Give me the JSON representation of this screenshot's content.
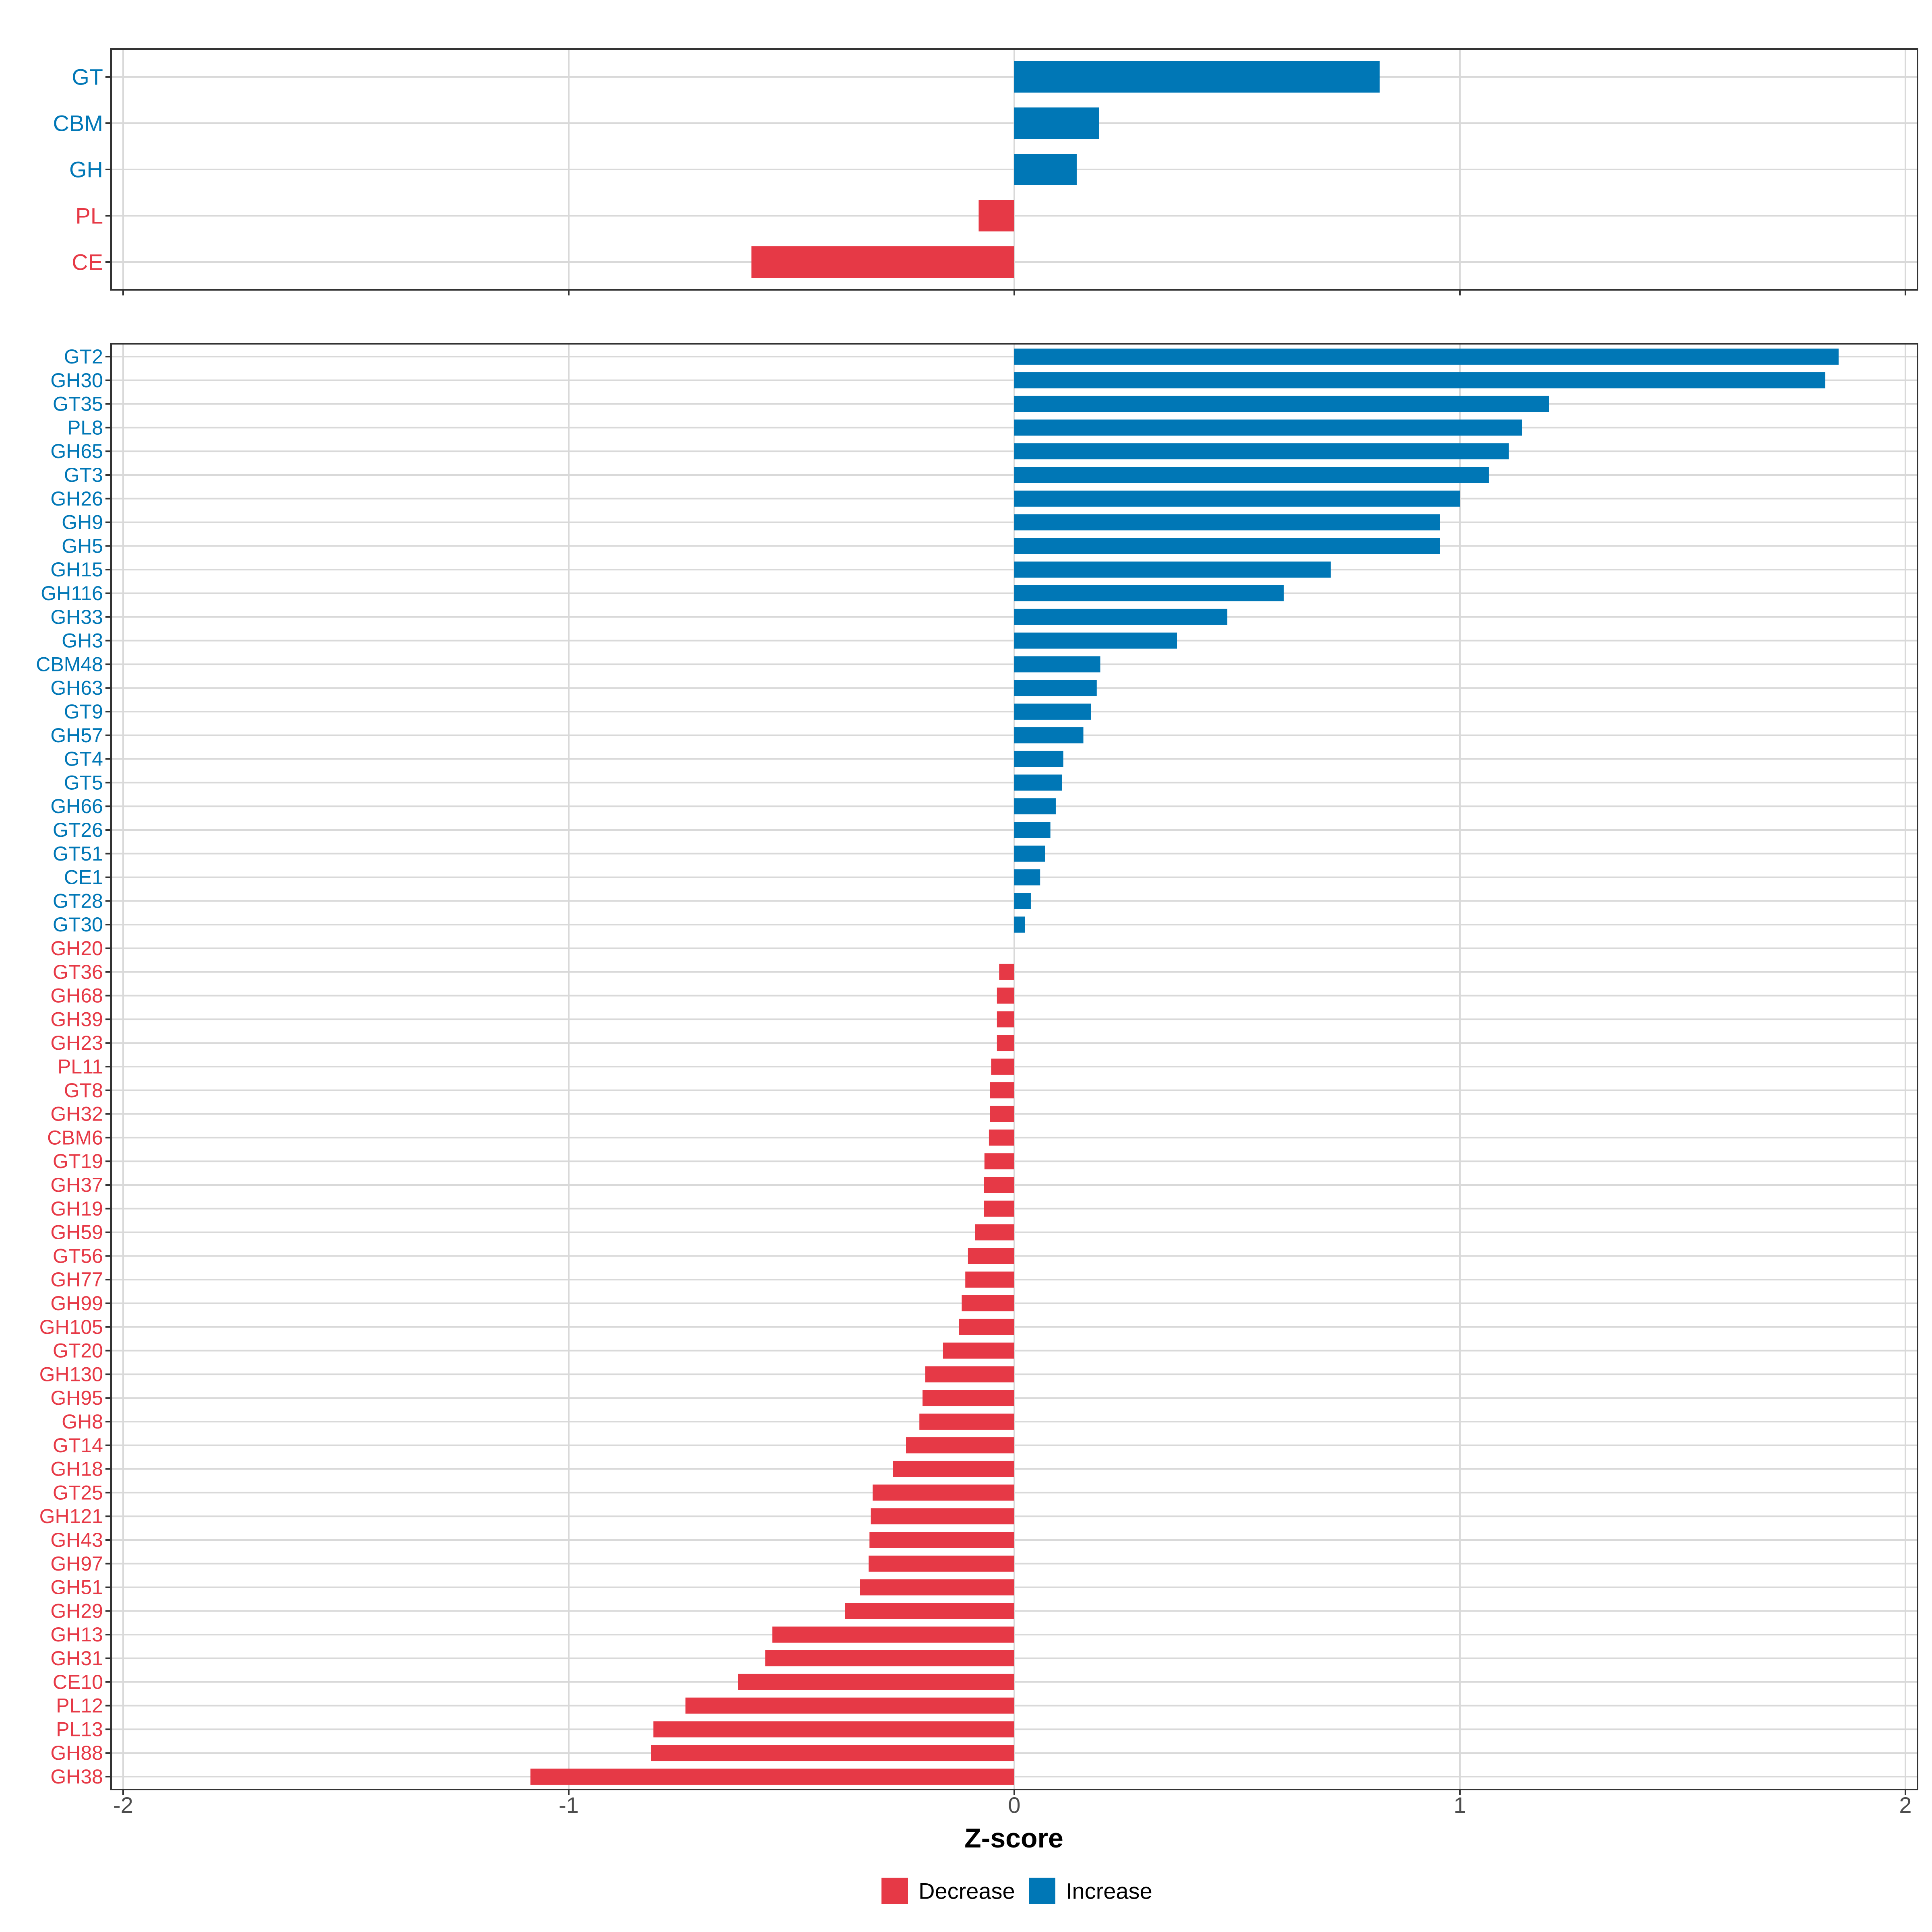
{
  "chart_data": [
    {
      "id": "top",
      "type": "bar",
      "orientation": "horizontal",
      "title": "",
      "xlabel": "",
      "ylabel": "",
      "xlim": [
        -2,
        2
      ],
      "grid": true,
      "categories": [
        "GT",
        "CBM",
        "GH",
        "PL",
        "CE"
      ],
      "values": [
        0.82,
        0.19,
        0.14,
        -0.08,
        -0.59
      ]
    },
    {
      "id": "bottom",
      "type": "bar",
      "orientation": "horizontal",
      "title": "",
      "xlabel": "Z-score",
      "ylabel": "",
      "xlim": [
        -2,
        2
      ],
      "grid": true,
      "xticks": [
        -2,
        -1,
        0,
        1,
        2
      ],
      "xtick_labels": [
        "-2",
        "-1",
        "0",
        "1",
        "2"
      ],
      "categories": [
        "GT2",
        "GH30",
        "GT35",
        "PL8",
        "GH65",
        "GT3",
        "GH26",
        "GH9",
        "GH5",
        "GH15",
        "GH116",
        "GH33",
        "GH3",
        "CBM48",
        "GH63",
        "GT9",
        "GH57",
        "GT4",
        "GT5",
        "GH66",
        "GT26",
        "GT51",
        "CE1",
        "GT28",
        "GT30",
        "GH20",
        "GT36",
        "GH68",
        "GH39",
        "GH23",
        "PL11",
        "GT8",
        "GH32",
        "CBM6",
        "GT19",
        "GH37",
        "GH19",
        "GH59",
        "GT56",
        "GH77",
        "GH99",
        "GH105",
        "GT20",
        "GH130",
        "GH95",
        "GH8",
        "GT14",
        "GH18",
        "GT25",
        "GH121",
        "GH43",
        "GH97",
        "GH51",
        "GH29",
        "GH13",
        "GH31",
        "CE10",
        "PL12",
        "PL13",
        "GH88",
        "GH38"
      ],
      "values": [
        1.85,
        1.82,
        1.2,
        1.14,
        1.11,
        1.065,
        1.0,
        0.955,
        0.955,
        0.71,
        0.605,
        0.478,
        0.365,
        0.193,
        0.185,
        0.172,
        0.155,
        0.11,
        0.107,
        0.093,
        0.081,
        0.069,
        0.058,
        0.037,
        0.024,
        0.0,
        -0.034,
        -0.039,
        -0.039,
        -0.039,
        -0.052,
        -0.055,
        -0.055,
        -0.057,
        -0.067,
        -0.068,
        -0.068,
        -0.088,
        -0.104,
        -0.11,
        -0.118,
        -0.124,
        -0.16,
        -0.2,
        -0.206,
        -0.213,
        -0.243,
        -0.272,
        -0.318,
        -0.322,
        -0.325,
        -0.327,
        -0.346,
        -0.38,
        -0.543,
        -0.559,
        -0.62,
        -0.738,
        -0.81,
        -0.815,
        -1.086
      ]
    }
  ],
  "legend": {
    "position": "bottom",
    "items": [
      {
        "label": "Decrease",
        "color": "#E63946"
      },
      {
        "label": "Increase",
        "color": "#0077B6"
      }
    ]
  },
  "colors": {
    "increase": "#0077B6",
    "decrease": "#E63946",
    "grid": "#D9D9D9",
    "axis": "#333333",
    "tick_text": "#4D4D4D"
  }
}
